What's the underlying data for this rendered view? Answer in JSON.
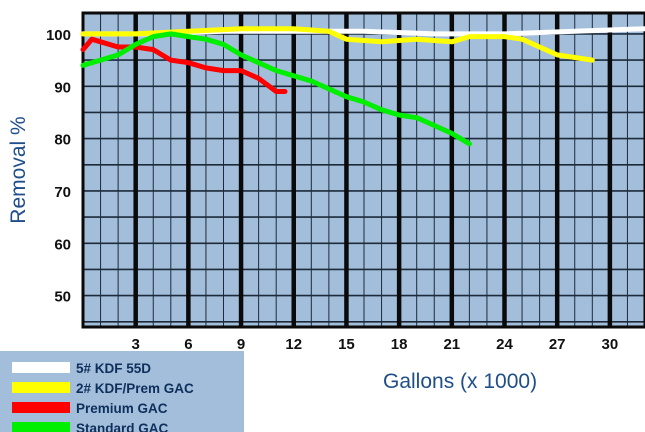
{
  "chart_data": {
    "type": "line",
    "title": "",
    "xlabel": "Gallons (x 1000)",
    "ylabel": "Removal %",
    "x_ticks": [
      "3",
      "6",
      "9",
      "12",
      "15",
      "18",
      "21",
      "24",
      "27",
      "30"
    ],
    "y_ticks": [
      "100",
      "90",
      "80",
      "70",
      "60",
      "50"
    ],
    "xlim": [
      0,
      32
    ],
    "ylim": [
      44,
      104
    ],
    "grid": true,
    "legend_position": "bottom-left",
    "colors": {
      "background": "#a3bedb",
      "grid_major": "#0a0a0a",
      "grid_minor": "#1c2a3a",
      "legend_bg": "#a3bedb"
    },
    "series": [
      {
        "name": "5# KDF 55D",
        "color": "#ffffff",
        "x": [
          0,
          4,
          8,
          12,
          16,
          20,
          24,
          28,
          32
        ],
        "y": [
          100,
          100,
          100.5,
          100.5,
          100.5,
          100,
          100,
          100.5,
          101
        ]
      },
      {
        "name": "2# KDF/Prem GAC",
        "color": "#ffff00",
        "x": [
          0,
          3,
          6,
          9,
          12,
          14,
          15,
          17,
          19,
          21,
          22,
          24,
          25,
          26,
          27,
          28,
          29
        ],
        "y": [
          100,
          100,
          100.5,
          101,
          101,
          100.5,
          99,
          98.5,
          99,
          98.5,
          99.5,
          99.5,
          99,
          97.5,
          96,
          95.5,
          95
        ]
      },
      {
        "name": "Premium GAC",
        "color": "#ff0000",
        "x": [
          0,
          0.5,
          1,
          2,
          3,
          4,
          5,
          6,
          7,
          8,
          9,
          10,
          11,
          11.5
        ],
        "y": [
          97,
          99,
          98.5,
          97.5,
          97.5,
          97,
          95,
          94.5,
          93.5,
          93,
          93,
          91.5,
          89,
          89
        ]
      },
      {
        "name": "Standard GAC",
        "color": "#00ee00",
        "x": [
          0,
          1,
          2,
          3,
          4,
          5,
          6,
          7,
          8,
          9,
          10,
          11,
          12,
          13,
          14,
          15,
          16,
          17,
          18,
          19,
          20,
          21,
          22
        ],
        "y": [
          94,
          95,
          96,
          98,
          99.5,
          100,
          99.5,
          99,
          98,
          96,
          94.5,
          93,
          92,
          91,
          89.5,
          88,
          87,
          85.5,
          84.5,
          84,
          82.5,
          81,
          79
        ]
      }
    ]
  }
}
